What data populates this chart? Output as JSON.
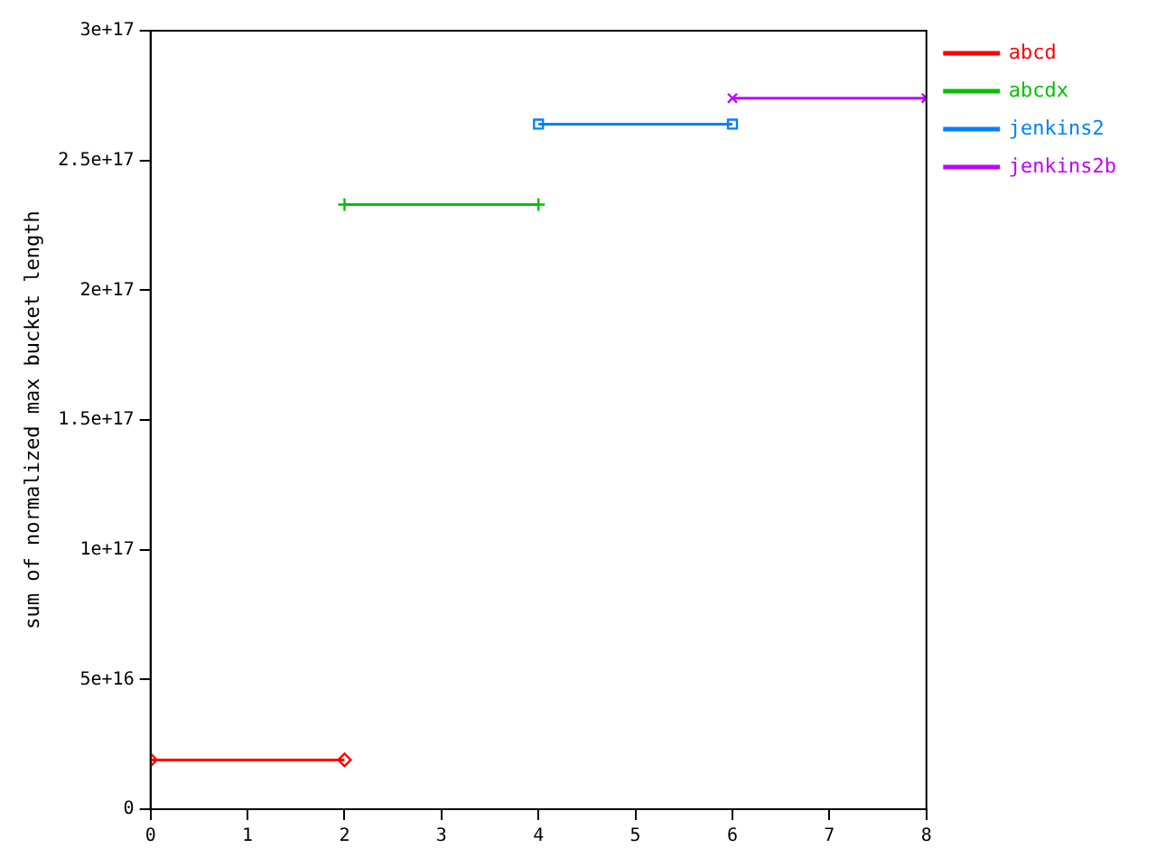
{
  "chart_data": {
    "type": "line",
    "ylabel": "sum of normalized max bucket length",
    "xlim": [
      0,
      8
    ],
    "xticks": [
      0,
      1,
      2,
      3,
      4,
      5,
      6,
      7,
      8
    ],
    "ylim": [
      0,
      3e+17
    ],
    "yticks": [
      {
        "value": 0,
        "label": "0"
      },
      {
        "value": 5e+16,
        "label": "5e+16"
      },
      {
        "value": 1e+17,
        "label": "1e+17"
      },
      {
        "value": 1.5e+17,
        "label": "1.5e+17"
      },
      {
        "value": 2e+17,
        "label": "2e+17"
      },
      {
        "value": 2.5e+17,
        "label": "2.5e+17"
      },
      {
        "value": 3e+17,
        "label": "3e+17"
      }
    ],
    "grid": false,
    "legend": "top right",
    "series": [
      {
        "name": "abcd",
        "color": "#ff0000",
        "marker": "diamond",
        "x": [
          0,
          2
        ],
        "values": [
          1.9e+16,
          1.9e+16
        ]
      },
      {
        "name": "abcdx",
        "color": "#00c000",
        "marker": "cross",
        "x": [
          2,
          4
        ],
        "values": [
          2.33e+17,
          2.33e+17
        ]
      },
      {
        "name": "jenkins2",
        "color": "#0080ff",
        "marker": "square",
        "x": [
          4,
          6
        ],
        "values": [
          2.64e+17,
          2.64e+17
        ]
      },
      {
        "name": "jenkins2b",
        "color": "#c000ff",
        "marker": "x",
        "x": [
          6,
          8
        ],
        "values": [
          2.74e+17,
          2.74e+17
        ]
      }
    ]
  }
}
